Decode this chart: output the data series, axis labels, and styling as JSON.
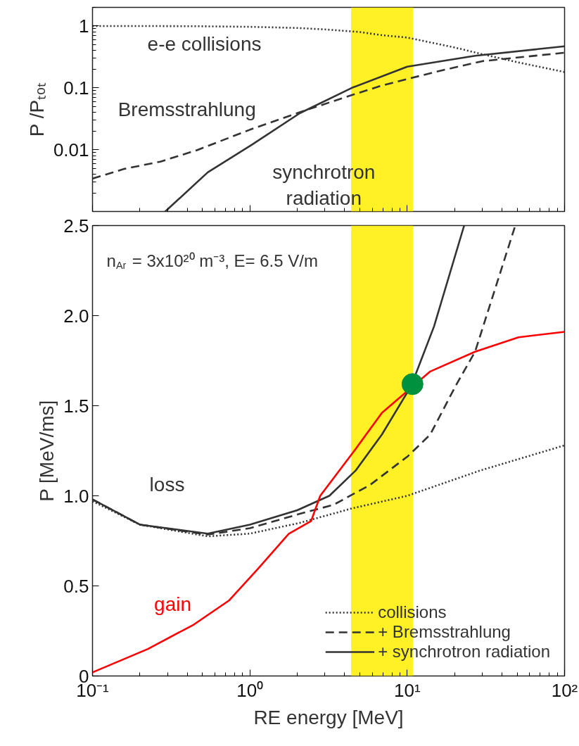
{
  "chart_data": [
    {
      "type": "line",
      "ylabel": "P /Pₜₒₜ",
      "xlim": [
        0.1,
        100
      ],
      "ylim": [
        0.001,
        2
      ],
      "xticks": [
        0.1,
        1,
        10,
        100
      ],
      "yticks": [
        0.01,
        0.1,
        1
      ],
      "log": "xy",
      "tick_labels": "y",
      "grid": false,
      "legend": false,
      "series": [
        {
          "color": "#333333",
          "line_style": "dotted",
          "x": [
            0.1,
            0.2,
            0.5,
            1,
            2,
            3,
            5,
            6.9,
            10,
            20,
            30,
            50,
            100
          ],
          "values": [
            1,
            1,
            0.99,
            0.97,
            0.93,
            0.88,
            0.8,
            0.71,
            0.65,
            0.45,
            0.35,
            0.26,
            0.18
          ]
        },
        {
          "color": "#333333",
          "line_style": "dashed",
          "x": [
            0.1,
            0.16,
            0.27,
            0.46,
            1,
            2,
            4,
            7,
            15,
            30,
            100
          ],
          "values": [
            0.0034,
            0.0049,
            0.0064,
            0.0098,
            0.021,
            0.039,
            0.07,
            0.11,
            0.18,
            0.27,
            0.37
          ]
        },
        {
          "color": "#333333",
          "line_style": "solid",
          "x": [
            0.29,
            0.54,
            1.03,
            2.08,
            4.45,
            10,
            27,
            100
          ],
          "values": [
            0.001,
            0.0043,
            0.012,
            0.039,
            0.1,
            0.22,
            0.33,
            0.47
          ]
        }
      ],
      "bands": [
        {
          "axis": "x",
          "from": 4.4,
          "to": 10.9,
          "color": "#ffee00"
        }
      ],
      "annotations": [
        "e-e collisions",
        "Bremsstrahlung",
        "synchrotron\nradiation"
      ]
    },
    {
      "type": "line",
      "xlabel": "RE energy [MeV]",
      "ylabel": "P [MeV/ms]",
      "xlim": [
        0.1,
        100
      ],
      "ylim": [
        0,
        2.5
      ],
      "xticks": [
        {
          "value": 0.1,
          "label": "10⁻¹"
        },
        {
          "value": 1,
          "label": "10⁰"
        },
        {
          "value": 10,
          "label": "10¹"
        },
        {
          "value": 100,
          "label": "10²"
        }
      ],
      "yticks": [
        0,
        0.5,
        {
          "value": 1,
          "label": "1.0"
        },
        1.5,
        {
          "value": 2,
          "label": "2.0"
        },
        2.5
      ],
      "log": "x",
      "grid": false,
      "legend": "bottom right",
      "series": [
        {
          "name": "collisions",
          "color": "#333333",
          "line_style": "dotted",
          "x": [
            0.1,
            0.2,
            0.54,
            1,
            2.08,
            4.45,
            10,
            29,
            100
          ],
          "values": [
            0.97,
            0.84,
            0.775,
            0.79,
            0.85,
            0.93,
            1.0,
            1.14,
            1.28
          ]
        },
        {
          "name": "+ Bremsstrahlung",
          "color": "#333333",
          "line_style": "dashed",
          "x": [
            0.1,
            0.2,
            0.54,
            1,
            2.08,
            3.4,
            5.8,
            10.1,
            14,
            20.3,
            27,
            48.6
          ],
          "values": [
            0.98,
            0.84,
            0.785,
            0.82,
            0.9,
            0.95,
            1.06,
            1.22,
            1.34,
            1.61,
            1.8,
            2.5
          ]
        },
        {
          "name": "+ synchrotron radiation",
          "color": "#333333",
          "line_style": "solid",
          "x": [
            0.1,
            0.2,
            0.54,
            1,
            2,
            3.2,
            4.7,
            6.9,
            10.6,
            14.8,
            23
          ],
          "values": [
            0.98,
            0.84,
            0.79,
            0.84,
            0.92,
            1.0,
            1.14,
            1.34,
            1.61,
            1.94,
            2.5
          ]
        },
        {
          "name": "gain",
          "color": "#ff0000",
          "line_style": "solid",
          "x": [
            0.1,
            0.225,
            0.44,
            0.74,
            1.14,
            1.77,
            2.45,
            2.8,
            4.7,
            6.9,
            14,
            27,
            51,
            100
          ],
          "values": [
            0.02,
            0.15,
            0.285,
            0.42,
            0.6,
            0.79,
            0.86,
            1.0,
            1.26,
            1.46,
            1.69,
            1.8,
            1.88,
            1.91
          ]
        },
        {
          "type": "scatter",
          "marker": "circle",
          "color": "#00913f",
          "x": [
            10.8
          ],
          "values": [
            1.62
          ]
        }
      ],
      "bands": [
        {
          "axis": "x",
          "from": 4.4,
          "to": 10.9,
          "color": "#ffee00"
        }
      ],
      "annotations": [
        "n$_{Ar}$ = 3x10²⁰ m⁻³, E= 6.5 V/m",
        "loss"
      ]
    }
  ]
}
